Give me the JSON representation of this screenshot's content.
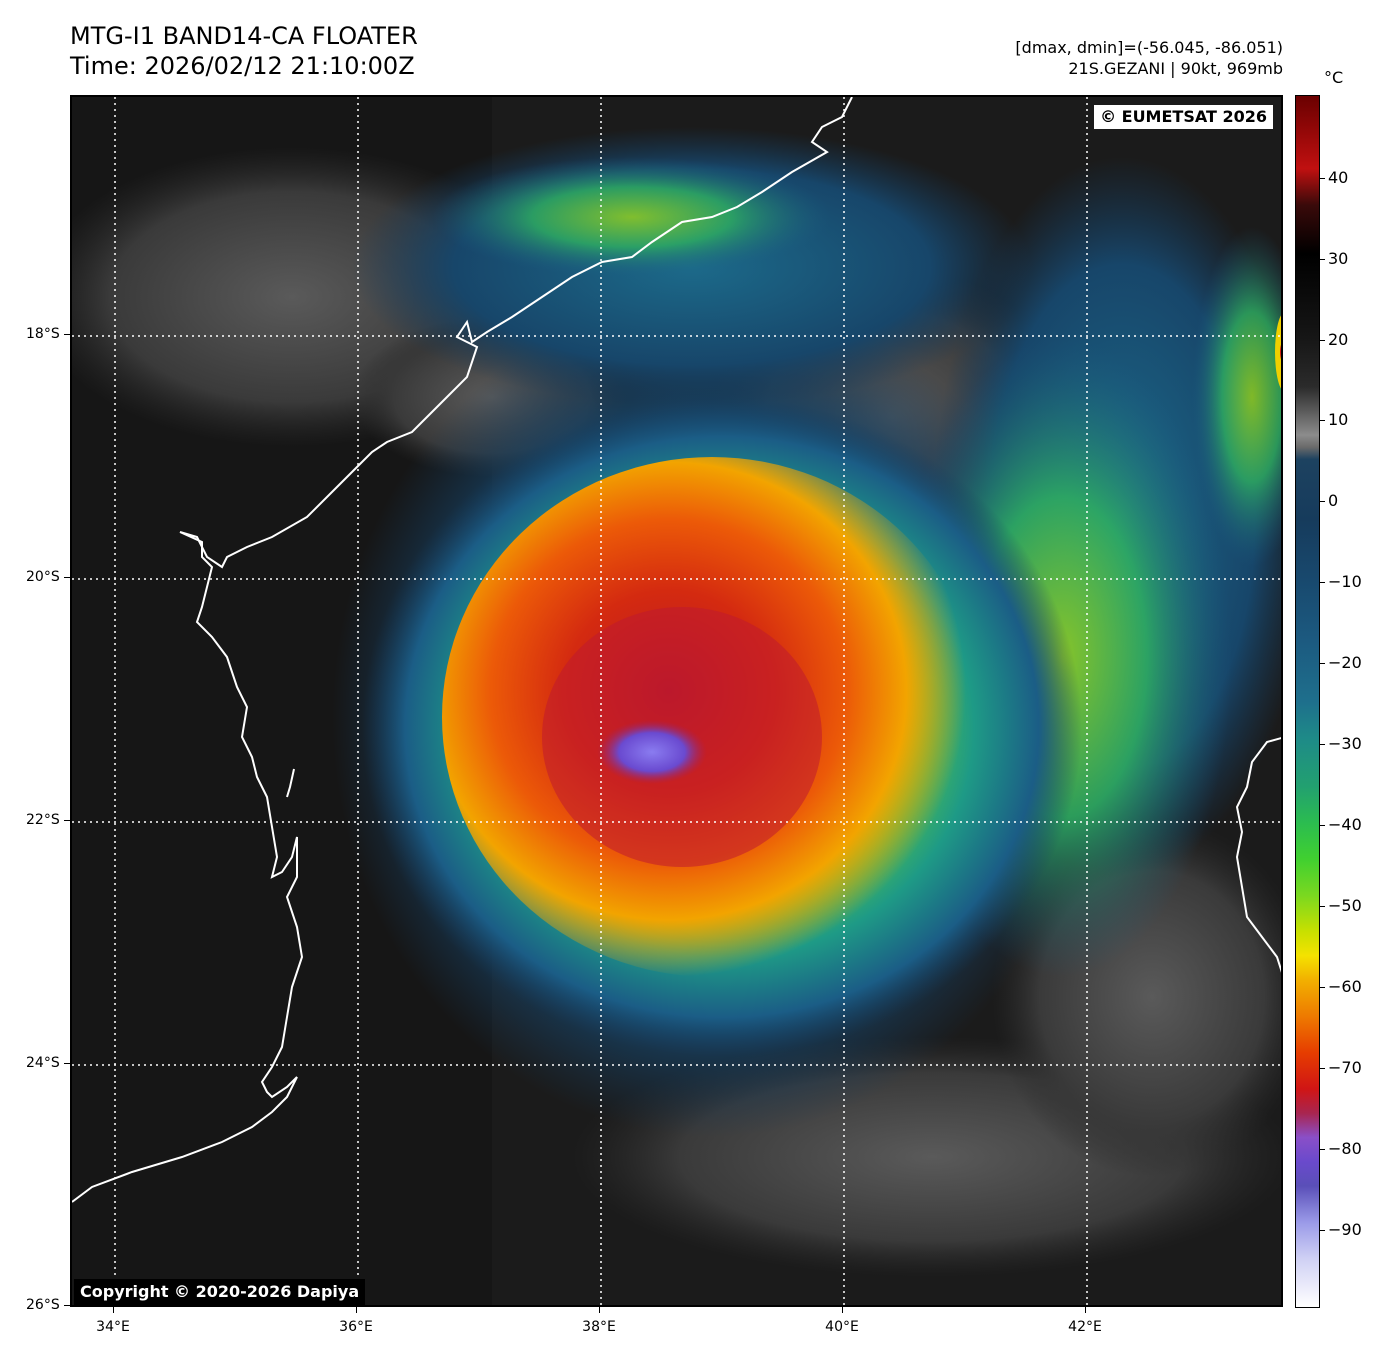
{
  "header": {
    "title_line1": "MTG-I1 BAND14-CA FLOATER",
    "title_line2": "Time: 2026/02/12 21:10:00Z",
    "range_text": "[dmax, dmin]=(-56.045, -86.051)",
    "storm_text": "21S.GEZANI | 90kt, 969mb"
  },
  "map": {
    "copyright_top": "© EUMETSAT 2026",
    "copyright_bottom": "Copyright © 2020-2026 Dapiya",
    "lat_labels": [
      "18°S",
      "20°S",
      "22°S",
      "24°S",
      "26°S"
    ],
    "lon_labels": [
      "34°E",
      "36°E",
      "38°E",
      "40°E",
      "42°E"
    ],
    "coastline_color": "#ffffff",
    "grid_color": "#ffffff"
  },
  "colorbar": {
    "unit": "°C",
    "ticks": [
      "40",
      "30",
      "20",
      "10",
      "0",
      "−10",
      "−20",
      "−30",
      "−40",
      "−50",
      "−60",
      "−70",
      "−80",
      "−90"
    ]
  }
}
